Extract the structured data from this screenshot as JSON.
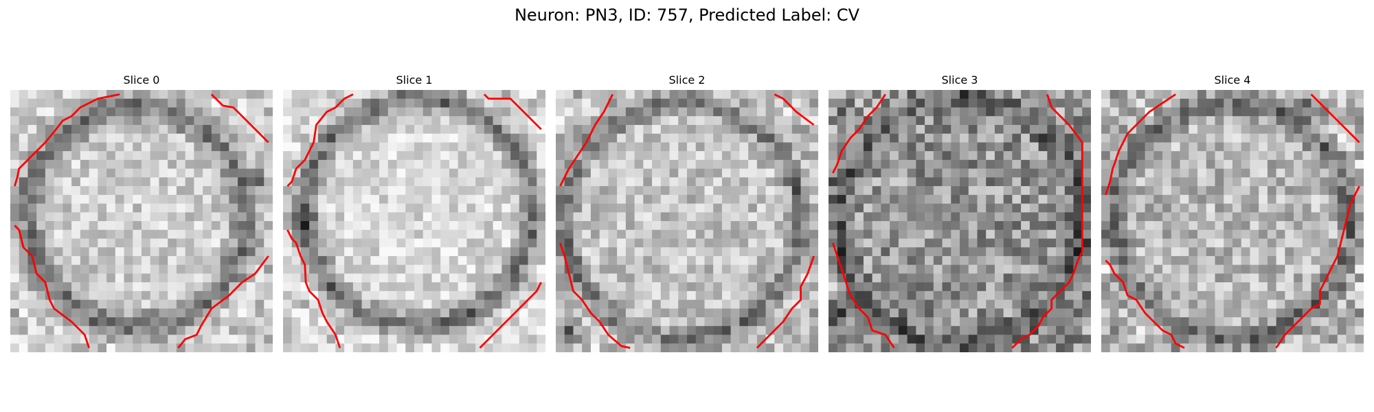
{
  "figure": {
    "title": "Neuron: PN3, ID: 757, Predicted Label: CV",
    "contour_color": "#ff0000"
  },
  "slices": [
    {
      "title": "Slice 0"
    },
    {
      "title": "Slice 1"
    },
    {
      "title": "Slice 2"
    },
    {
      "title": "Slice 3"
    },
    {
      "title": "Slice 4"
    }
  ]
}
